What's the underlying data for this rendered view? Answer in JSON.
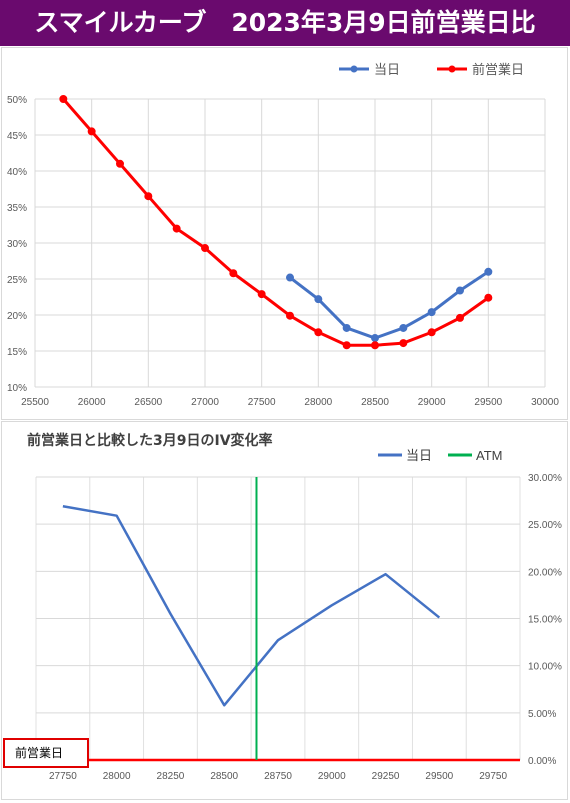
{
  "title": "スマイルカーブ　2023年3月9日前営業日比",
  "chart_data": [
    {
      "type": "line",
      "title": "",
      "xlim": [
        25500,
        30000
      ],
      "ylim": [
        10,
        50
      ],
      "x_ticks": [
        "25500",
        "26000",
        "26500",
        "27000",
        "27500",
        "28000",
        "28500",
        "29000",
        "29500",
        "30000"
      ],
      "y_ticks": [
        "10%",
        "15%",
        "20%",
        "25%",
        "30%",
        "35%",
        "40%",
        "45%",
        "50%"
      ],
      "legend_position": "top-right",
      "grid": true,
      "series": [
        {
          "name": "当日",
          "color": "#4472c4",
          "x": [
            27750,
            28000,
            28250,
            28500,
            28750,
            29000,
            29250,
            29500
          ],
          "y": [
            25.2,
            22.2,
            18.2,
            16.8,
            18.2,
            20.4,
            23.4,
            26.0
          ]
        },
        {
          "name": "前営業日",
          "color": "#ff0000",
          "x": [
            25750,
            26000,
            26250,
            26500,
            26750,
            27000,
            27250,
            27500,
            27750,
            28000,
            28250,
            28500,
            28750,
            29000,
            29250,
            29500
          ],
          "y": [
            50.0,
            45.5,
            41.0,
            36.5,
            32.0,
            29.3,
            25.8,
            22.9,
            19.9,
            17.6,
            15.8,
            15.8,
            16.1,
            17.6,
            19.6,
            22.4
          ]
        }
      ]
    },
    {
      "type": "line",
      "title": "前営業日と比較した3月9日のIV変化率",
      "categories": [
        "27750",
        "28000",
        "28250",
        "28500",
        "28750",
        "29000",
        "29250",
        "29500",
        "29750"
      ],
      "ylim": [
        0,
        30
      ],
      "y_ticks": [
        "0.00%",
        "5.00%",
        "10.00%",
        "15.00%",
        "20.00%",
        "25.00%",
        "30.00%"
      ],
      "legend_position": "top-right",
      "grid": true,
      "series": [
        {
          "name": "当日",
          "color": "#4472c4",
          "values": [
            26.9,
            25.9,
            15.5,
            5.8,
            12.7,
            16.4,
            19.7,
            15.1,
            null
          ]
        },
        {
          "name": "ATM",
          "color": "#00b050",
          "at_category_position": 3.6
        }
      ],
      "baseline_label": "前営業日",
      "baseline_color": "#ff0000"
    }
  ]
}
